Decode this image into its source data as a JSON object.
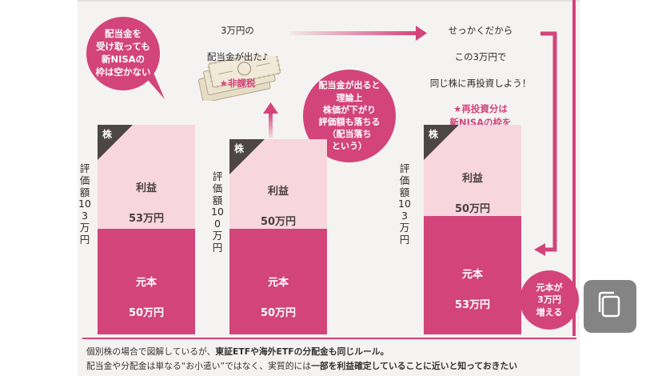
{
  "bubbles": {
    "top_left": "配当金を\n受け取っても\n新NISAの\n枠は空かない",
    "middle": "配当金が出ると\n理論上\n株価が下がり\n評価額も落ちる\n（配当落ち\nという）",
    "bottom_right": "元本が\n3万円\n増える"
  },
  "captions": {
    "dividend": {
      "line1": "3万円の",
      "line2": "配当金が出た♪",
      "star": "★非課税"
    },
    "reinvest": {
      "line1": "せっかくだから",
      "line2": "この3万円で",
      "line3": "同じ株に再投資しよう！",
      "star": "★再投資分は\n新NISAの枠を\n新たに消費する"
    }
  },
  "stocks": [
    {
      "corner": "株",
      "valuation_label": "評価額103万円",
      "profit_label": "利益",
      "profit_value": "53万円",
      "principal_label": "元本",
      "principal_value": "50万円"
    },
    {
      "corner": "株",
      "valuation_label": "評価額100万円",
      "profit_label": "利益",
      "profit_value": "50万円",
      "principal_label": "元本",
      "principal_value": "50万円"
    },
    {
      "corner": "株",
      "valuation_label": "評価額103万円",
      "profit_label": "利益",
      "profit_value": "50万円",
      "principal_label": "元本",
      "principal_value": "53万円"
    }
  ],
  "footer": {
    "line1_plain": "個別株の場合で図解しているが、",
    "line1_bold": "東証ETFや海外ETFの分配金も同じルール。",
    "line2_plain": "配当金や分配金は単なる“お小遣い”ではなく、実質的には",
    "line2_bold": "一部を利益確定していることに近いと知っておきたい"
  },
  "colors": {
    "accent": "#d2447a",
    "profit_fill": "#f7d6de",
    "corner": "#4d4546"
  },
  "icons": {
    "money": "banknotes-icon",
    "copy": "copy-icon"
  }
}
